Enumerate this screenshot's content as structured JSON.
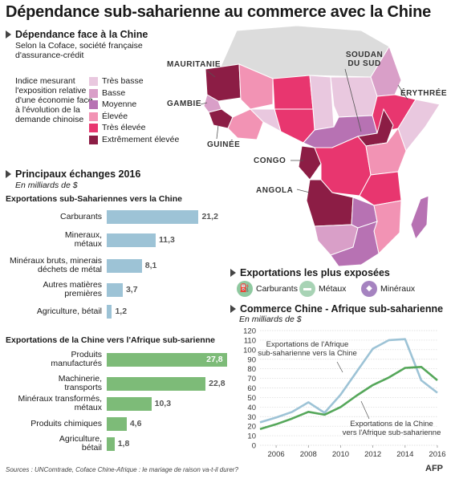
{
  "title": "Dépendance sub-saharienne au commerce avec la Chine",
  "dependence": {
    "heading": "Dépendance face à la Chine",
    "subtitle": "Selon la Coface, société française d'assurance-crédit",
    "description": "Indice mesurant l'exposition relative d'une économie face à l'évolution de la demande chinoise",
    "legend": [
      {
        "label": "Très basse",
        "color": "#e9c8df"
      },
      {
        "label": "Basse",
        "color": "#d99fc8"
      },
      {
        "label": "Moyenne",
        "color": "#b772b3"
      },
      {
        "label": "Élevée",
        "color": "#f293b4"
      },
      {
        "label": "Très élevée",
        "color": "#e8366f"
      },
      {
        "label": "Extrêmement élevée",
        "color": "#8c1d45"
      }
    ]
  },
  "map_labels": {
    "mauritanie": "MAURITANIE",
    "soudan": "SOUDAN DU SUD",
    "erythree": "ÉRYTHRÉE",
    "gambie": "GAMBIE",
    "guinee": "GUINÉE",
    "congo": "CONGO",
    "angola": "ANGOLA"
  },
  "exchanges": {
    "heading": "Principaux échanges 2016",
    "unit": "En milliards de $",
    "colors": {
      "exports_to_china": "#9dc3d6",
      "exports_from_china": "#7dbb78"
    }
  },
  "exposed": {
    "heading": "Exportations les plus exposées",
    "items": [
      {
        "label": "Carburants",
        "icon": "fuel-pump-icon",
        "color": "#8fc9a0"
      },
      {
        "label": "Métaux",
        "icon": "metal-bars-icon",
        "color": "#a8d3b5"
      },
      {
        "label": "Minéraux",
        "icon": "diamond-icon",
        "color": "#a583c0"
      }
    ]
  },
  "trade_heading": "Commerce Chine  - Afrique sub-saharienne",
  "trade_unit": "En milliards de $",
  "source": "Sources : UNComtrade, Coface Chine-Afrique : le mariage de raison va-t-il durer?",
  "credit": "AFP",
  "chart_data": [
    {
      "type": "bar",
      "orientation": "horizontal",
      "title": "Exportations sub-Sahariennes vers la Chine",
      "categories": [
        [
          "Carburants"
        ],
        [
          "Mineraux,",
          "métaux"
        ],
        [
          "Minéraux bruts, minerais",
          "déchets de métal"
        ],
        [
          "Autres matières",
          "premières"
        ],
        [
          "Agriculture, bétail"
        ]
      ],
      "values": [
        21.2,
        11.3,
        8.1,
        3.7,
        1.2
      ],
      "value_labels": [
        "21,2",
        "11,3",
        "8,1",
        "3,7",
        "1,2"
      ],
      "color": "#9dc3d6"
    },
    {
      "type": "bar",
      "orientation": "horizontal",
      "title": "Exportations de la Chine vers l'Afrique sub-sarienne",
      "categories": [
        [
          "Produits",
          "manufacturés"
        ],
        [
          "Machinerie,",
          "transports"
        ],
        [
          "Minéraux transformés,",
          "métaux"
        ],
        [
          "Produits chimiques"
        ],
        [
          "Agriculture,",
          "bétail"
        ]
      ],
      "values": [
        27.8,
        22.8,
        10.3,
        4.6,
        1.8
      ],
      "value_labels": [
        "27,8",
        "22,8",
        "10,3",
        "4,6",
        "1,8"
      ],
      "color": "#7dbb78"
    },
    {
      "type": "line",
      "x": [
        2005,
        2006,
        2007,
        2008,
        2009,
        2010,
        2011,
        2012,
        2013,
        2014,
        2015,
        2016
      ],
      "xticks": [
        2006,
        2008,
        2010,
        2012,
        2014,
        2016
      ],
      "yticks": [
        0,
        10,
        20,
        30,
        40,
        50,
        60,
        70,
        80,
        90,
        100,
        110,
        120
      ],
      "ylim": [
        0,
        120
      ],
      "xlim": [
        2005,
        2016
      ],
      "series": [
        {
          "name": "Exportations de l'Afrique sub-saharienne vers la Chine",
          "color": "#9dc3d6",
          "values": [
            24,
            29,
            35,
            45,
            34,
            53,
            77,
            101,
            110,
            111,
            68,
            55
          ]
        },
        {
          "name": "Exportations de la Chine vers l'Afrique sub-saharienne",
          "color": "#55a75a",
          "values": [
            17,
            22,
            28,
            35,
            32,
            40,
            52,
            63,
            71,
            81,
            82,
            68
          ]
        }
      ]
    }
  ]
}
